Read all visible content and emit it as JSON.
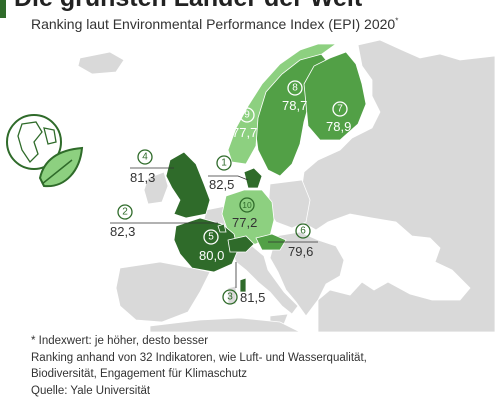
{
  "header": {
    "title": "Die grünsten Länder der Welt",
    "subtitle": "Ranking laut Environmental Performance Index (EPI) 2020",
    "subtitle_marker": "*"
  },
  "map": {
    "highlight_dark": "#2f6b2a",
    "highlight_medium": "#52a046",
    "highlight_light": "#8dd080",
    "land_color": "#d9d9d9",
    "ranks": [
      {
        "rank": "1",
        "value": "82,5",
        "country": "Dänemark"
      },
      {
        "rank": "2",
        "value": "82,3",
        "country": "Luxemburg"
      },
      {
        "rank": "3",
        "value": "81,5",
        "country": "Schweiz"
      },
      {
        "rank": "4",
        "value": "81,3",
        "country": "Vereinigtes Königreich"
      },
      {
        "rank": "5",
        "value": "80,0",
        "country": "Frankreich"
      },
      {
        "rank": "6",
        "value": "79,6",
        "country": "Österreich"
      },
      {
        "rank": "7",
        "value": "78,9",
        "country": "Finnland"
      },
      {
        "rank": "8",
        "value": "78,7",
        "country": "Schweden"
      },
      {
        "rank": "9",
        "value": "77,7",
        "country": "Norwegen"
      },
      {
        "rank": "10",
        "value": "77,2",
        "country": "Deutschland"
      }
    ]
  },
  "footer": {
    "note": "* Indexwert: je höher, desto besser",
    "method_line1": "Ranking anhand von 32 Indikatoren, wie Luft- und Wasserqualität,",
    "method_line2": "Biodiversität, Engagement für Klimaschutz",
    "source": "Quelle: Yale Universität"
  }
}
